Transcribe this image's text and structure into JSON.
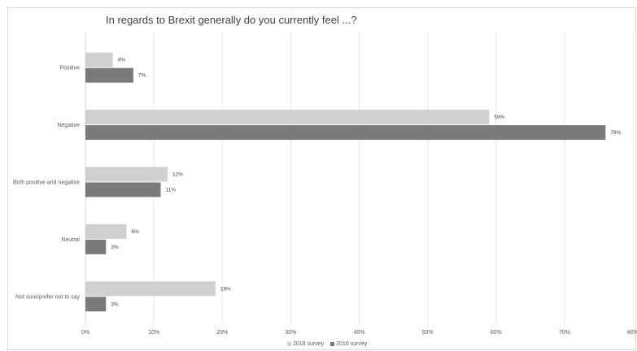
{
  "chart_data": {
    "type": "bar",
    "orientation": "horizontal",
    "title": "In regards to Brexit generally do you currently feel ...?",
    "categories": [
      "Positive",
      "Negative",
      "Both positive and negative",
      "Neutral",
      "Not sure/prefer not to say"
    ],
    "series": [
      {
        "name": "2018 survey",
        "values": [
          4,
          59,
          12,
          6,
          19
        ],
        "labels": [
          "4%",
          "59%",
          "12%",
          "6%",
          "19%"
        ],
        "color": "#d0d0d0"
      },
      {
        "name": "2016 survey",
        "values": [
          7,
          76,
          11,
          3,
          3
        ],
        "labels": [
          "7%",
          "76%",
          "11%",
          "3%",
          "3%"
        ],
        "color": "#7a7a7a"
      }
    ],
    "xlim": [
      0,
      80
    ],
    "xticks": [
      "0%",
      "10%",
      "20%",
      "30%",
      "40%",
      "50%",
      "60%",
      "70%",
      "80%"
    ],
    "grid": true,
    "legend_position": "bottom"
  }
}
